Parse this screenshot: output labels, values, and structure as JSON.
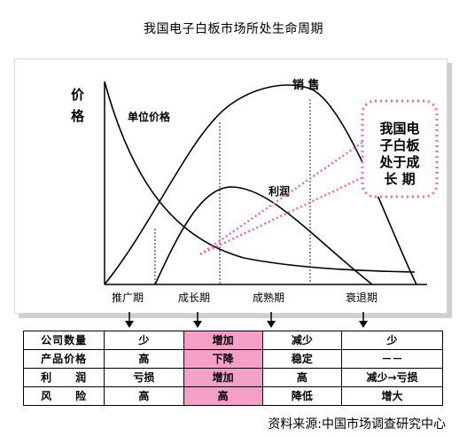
{
  "title": "我国电子白板市场所处生命周期",
  "axis": {
    "y_label_1": "价",
    "y_label_2": "格"
  },
  "curve_labels": {
    "unit_price": "单位价格",
    "sales": "销 售",
    "profit": "利润"
  },
  "phases": [
    "推广期",
    "成长期",
    "成熟期",
    "衰退期"
  ],
  "callout": {
    "line1": "我国电",
    "line2": "子白板",
    "line3": "处于成",
    "line4": "长 期"
  },
  "table": {
    "rows": [
      {
        "label": "公司数量",
        "cells": [
          "少",
          "增加",
          "减少",
          "少"
        ]
      },
      {
        "label": "产品价格",
        "cells": [
          "高",
          "下降",
          "稳定",
          "－－"
        ]
      },
      {
        "label": "利　　润",
        "cells": [
          "亏损",
          "增加",
          "高",
          "减少→亏损"
        ]
      },
      {
        "label": "风　　险",
        "cells": [
          "高",
          "高",
          "降低",
          "增大"
        ]
      }
    ]
  },
  "source": "资料来源:中国市场调查研究中心",
  "colors": {
    "highlight": "#f4a0c8",
    "callout": "#f06aa8",
    "curve": "#000000"
  }
}
